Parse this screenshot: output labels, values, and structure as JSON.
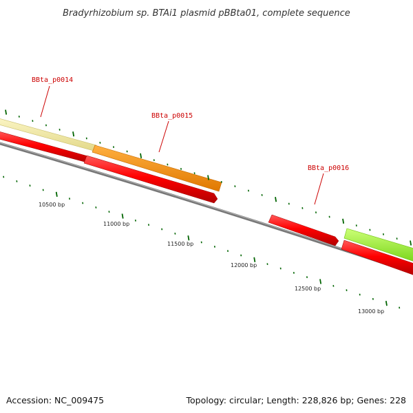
{
  "title": "Bradyrhizobium sp. BTAi1 plasmid pBBta01, complete sequence",
  "accession": "Accession: NC_009475",
  "summary": "Topology: circular; Length: 228,826 bp; Genes: 228",
  "colors": {
    "backbone": "#7a7a7a",
    "forward_gene": "#ff0000",
    "feature_pale": "#f0e68c",
    "feature_orange": "#ff8c00",
    "feature_green": "#99ff33",
    "label": "#cc0000",
    "tick": "#006400"
  },
  "gene_labels": [
    {
      "text": "BBta_p0014"
    },
    {
      "text": "BBta_p0015"
    },
    {
      "text": "BBta_p0016"
    }
  ],
  "scale_labels": [
    {
      "text": "10500 bp"
    },
    {
      "text": "11000 bp"
    },
    {
      "text": "11500 bp"
    },
    {
      "text": "12000 bp"
    },
    {
      "text": "12500 bp"
    },
    {
      "text": "13000 bp"
    }
  ]
}
